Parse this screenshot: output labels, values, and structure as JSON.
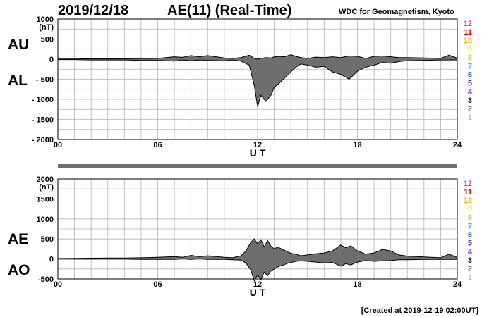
{
  "header": {
    "date": "2019/12/18",
    "title": "AE(11) (Real-Time)",
    "org": "WDC for Geomagnetism, Kyoto"
  },
  "footer": "[Created at 2019-12-19 02:00UT]",
  "colors": {
    "grid": "#b4b4b4",
    "fill": "#6e6e6e",
    "line": "#000000",
    "separator": "#6e6e6e"
  },
  "month_legend": {
    "labels": [
      "12",
      "11",
      "10",
      "9",
      "8",
      "7",
      "6",
      "5",
      "4",
      "3",
      "2",
      "1"
    ],
    "colors": [
      "#ff2f9f",
      "#e00000",
      "#f5a800",
      "#f0f000",
      "#98e020",
      "#20c0e8",
      "#1e5be8",
      "#3030b0",
      "#c020e0",
      "#101010",
      "#707070",
      "#c8c8c8"
    ]
  },
  "chart_data": [
    {
      "type": "area",
      "name": "AU-AL panel",
      "side_labels": [
        "AU",
        "AL"
      ],
      "ylabel": "(nT)",
      "ylim": [
        -2000,
        1000
      ],
      "yticks": [
        1000,
        500,
        0,
        -500,
        -1000,
        -1500,
        -2000
      ],
      "ytick_labels": [
        "1000",
        "500",
        "0",
        "- 500",
        "- 1000",
        "- 1500",
        "- 2000"
      ],
      "xlim": [
        0,
        24
      ],
      "xticks": [
        0,
        6,
        12,
        18,
        24
      ],
      "xtick_labels": [
        "00",
        "06",
        "12",
        "18",
        "24"
      ],
      "xlabel": "U T",
      "grid": true,
      "upper_series": {
        "x": [
          0,
          1,
          2,
          3,
          4,
          5,
          6,
          7,
          7.5,
          8,
          8.5,
          9,
          10,
          10.5,
          11,
          11.5,
          11.8,
          12,
          12.2,
          12.5,
          12.8,
          13,
          13.3,
          13.6,
          14,
          14.3,
          14.6,
          15,
          15.5,
          16,
          16.5,
          17,
          17.5,
          18,
          18.5,
          19,
          19.5,
          20,
          20.5,
          21,
          22,
          23,
          23.5,
          24
        ],
        "y": [
          5,
          5,
          10,
          10,
          10,
          15,
          20,
          60,
          45,
          90,
          60,
          90,
          30,
          20,
          40,
          100,
          20,
          0,
          20,
          40,
          30,
          60,
          70,
          60,
          110,
          70,
          40,
          20,
          50,
          40,
          60,
          40,
          80,
          70,
          20,
          70,
          80,
          60,
          40,
          40,
          30,
          20,
          100,
          30
        ]
      },
      "lower_series": {
        "x": [
          0,
          1,
          2,
          3,
          4,
          5,
          6,
          7,
          7.5,
          8,
          8.5,
          9,
          10,
          10.5,
          11,
          11.5,
          11.8,
          12,
          12.2,
          12.5,
          12.8,
          13,
          13.3,
          13.6,
          14,
          14.3,
          14.6,
          15,
          15.5,
          16,
          16.5,
          17,
          17.5,
          18,
          18.5,
          19,
          19.5,
          20,
          20.5,
          21,
          22,
          23,
          23.5,
          24
        ],
        "y": [
          -10,
          -10,
          -20,
          -20,
          -20,
          -30,
          -30,
          -50,
          -20,
          -40,
          -20,
          -30,
          -40,
          -20,
          -50,
          -150,
          -650,
          -1180,
          -900,
          -1050,
          -900,
          -700,
          -600,
          -480,
          -320,
          -200,
          -120,
          -150,
          -200,
          -180,
          -320,
          -380,
          -500,
          -300,
          -200,
          -150,
          -80,
          -100,
          -60,
          -40,
          -30,
          -20,
          -20,
          -20
        ]
      }
    },
    {
      "type": "area",
      "name": "AE-AO panel",
      "side_labels": [
        "AE",
        "AO"
      ],
      "ylabel": "(nT)",
      "ylim": [
        -500,
        2000
      ],
      "yticks": [
        2000,
        1500,
        1000,
        500,
        0,
        -500
      ],
      "ytick_labels": [
        "2000",
        "1500",
        "1000",
        "500",
        "0",
        "-500"
      ],
      "xlim": [
        0,
        24
      ],
      "xticks": [
        0,
        6,
        12,
        18,
        24
      ],
      "xtick_labels": [
        "00",
        "06",
        "12",
        "18",
        "24"
      ],
      "xlabel": "U T",
      "grid": true,
      "upper_series": {
        "x": [
          0,
          1,
          2,
          3,
          4,
          5,
          6,
          7,
          7.5,
          8,
          8.5,
          9,
          10,
          10.5,
          11,
          11.3,
          11.6,
          11.8,
          12,
          12.2,
          12.4,
          12.6,
          12.8,
          13,
          13.2,
          13.5,
          13.8,
          14,
          14.3,
          14.6,
          15,
          15.5,
          16,
          16.5,
          17,
          17.3,
          17.6,
          18,
          18.5,
          19,
          19.5,
          20,
          20.5,
          21,
          22,
          23,
          23.5,
          24
        ],
        "y": [
          10,
          15,
          20,
          25,
          25,
          30,
          40,
          60,
          40,
          90,
          60,
          80,
          40,
          30,
          80,
          200,
          420,
          500,
          380,
          480,
          300,
          460,
          320,
          250,
          300,
          240,
          180,
          140,
          120,
          80,
          100,
          130,
          150,
          200,
          350,
          280,
          330,
          200,
          120,
          150,
          240,
          200,
          100,
          70,
          50,
          30,
          120,
          40
        ]
      },
      "lower_series": {
        "x": [
          0,
          1,
          2,
          3,
          4,
          5,
          6,
          7,
          7.5,
          8,
          8.5,
          9,
          10,
          10.5,
          11,
          11.3,
          11.6,
          11.8,
          12,
          12.2,
          12.4,
          12.6,
          12.8,
          13,
          13.2,
          13.5,
          13.8,
          14,
          14.3,
          14.6,
          15,
          15.5,
          16,
          16.5,
          17,
          17.3,
          17.6,
          18,
          18.5,
          19,
          19.5,
          20,
          20.5,
          21,
          22,
          23,
          23.5,
          24
        ],
        "y": [
          -5,
          -5,
          -5,
          -5,
          -5,
          -10,
          -10,
          -10,
          0,
          -10,
          0,
          -10,
          -10,
          -20,
          -30,
          -100,
          -280,
          -550,
          -400,
          -520,
          -330,
          -420,
          -300,
          -250,
          -200,
          -160,
          -110,
          -90,
          -60,
          -50,
          -60,
          -80,
          -100,
          -90,
          -180,
          -120,
          -150,
          -80,
          -40,
          -60,
          -50,
          -40,
          -20,
          -20,
          -10,
          -10,
          -10,
          -10
        ]
      }
    }
  ]
}
